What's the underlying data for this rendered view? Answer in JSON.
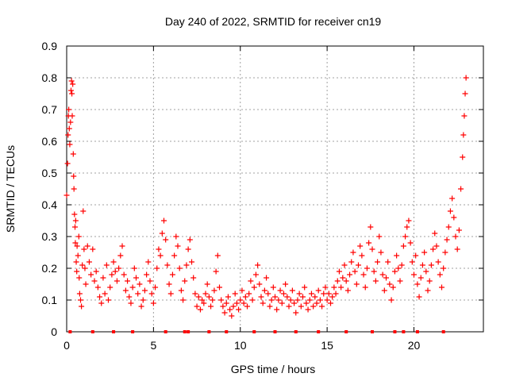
{
  "chart_data": {
    "type": "scatter",
    "title": "Day 240 of 2022, SRMTID for receiver cn19",
    "xlabel": "GPS time / hours",
    "ylabel": "SRMTID / TECUs",
    "xlim": [
      0,
      24
    ],
    "ylim": [
      0,
      0.9
    ],
    "xticks": [
      0,
      5,
      10,
      15,
      20
    ],
    "xtick_labels": [
      "0",
      "5",
      "10",
      "15",
      "20"
    ],
    "yticks": [
      0,
      0.1,
      0.2,
      0.3,
      0.4,
      0.5,
      0.6,
      0.7,
      0.8,
      0.9
    ],
    "ytick_labels": [
      "0",
      "0.1",
      "0.2",
      "0.3",
      "0.4",
      "0.5",
      "0.6",
      "0.7",
      "0.8",
      "0.9"
    ],
    "grid": true,
    "marker": "+",
    "color": "#ff0000",
    "series": [
      {
        "name": "SRMTID",
        "points": [
          [
            0.0,
            0.43
          ],
          [
            0.05,
            0.53
          ],
          [
            0.08,
            0.62
          ],
          [
            0.1,
            0.68
          ],
          [
            0.12,
            0.7
          ],
          [
            0.15,
            0.64
          ],
          [
            0.18,
            0.59
          ],
          [
            0.22,
            0.66
          ],
          [
            0.25,
            0.76
          ],
          [
            0.28,
            0.79
          ],
          [
            0.3,
            0.75
          ],
          [
            0.32,
            0.68
          ],
          [
            0.35,
            0.78
          ],
          [
            0.38,
            0.56
          ],
          [
            0.4,
            0.49
          ],
          [
            0.42,
            0.45
          ],
          [
            0.45,
            0.37
          ],
          [
            0.48,
            0.33
          ],
          [
            0.5,
            0.28
          ],
          [
            0.52,
            0.35
          ],
          [
            0.55,
            0.22
          ],
          [
            0.58,
            0.19
          ],
          [
            0.6,
            0.27
          ],
          [
            0.65,
            0.24
          ],
          [
            0.7,
            0.3
          ],
          [
            0.72,
            0.17
          ],
          [
            0.75,
            0.12
          ],
          [
            0.8,
            0.1
          ],
          [
            0.85,
            0.08
          ],
          [
            0.9,
            0.21
          ],
          [
            0.95,
            0.38
          ],
          [
            1.0,
            0.26
          ],
          [
            1.05,
            0.2
          ],
          [
            1.1,
            0.15
          ],
          [
            1.2,
            0.27
          ],
          [
            1.3,
            0.22
          ],
          [
            1.4,
            0.18
          ],
          [
            1.5,
            0.26
          ],
          [
            1.6,
            0.16
          ],
          [
            1.7,
            0.19
          ],
          [
            1.8,
            0.14
          ],
          [
            1.9,
            0.11
          ],
          [
            2.0,
            0.09
          ],
          [
            2.1,
            0.17
          ],
          [
            2.2,
            0.12
          ],
          [
            2.3,
            0.21
          ],
          [
            2.4,
            0.1
          ],
          [
            2.5,
            0.14
          ],
          [
            2.6,
            0.18
          ],
          [
            2.7,
            0.22
          ],
          [
            2.8,
            0.19
          ],
          [
            2.9,
            0.16
          ],
          [
            3.0,
            0.2
          ],
          [
            3.1,
            0.24
          ],
          [
            3.2,
            0.27
          ],
          [
            3.3,
            0.18
          ],
          [
            3.4,
            0.13
          ],
          [
            3.5,
            0.16
          ],
          [
            3.6,
            0.11
          ],
          [
            3.7,
            0.09
          ],
          [
            3.8,
            0.14
          ],
          [
            3.9,
            0.2
          ],
          [
            4.0,
            0.17
          ],
          [
            4.1,
            0.12
          ],
          [
            4.2,
            0.15
          ],
          [
            4.3,
            0.08
          ],
          [
            4.4,
            0.1
          ],
          [
            4.5,
            0.13
          ],
          [
            4.6,
            0.18
          ],
          [
            4.7,
            0.22
          ],
          [
            4.8,
            0.16
          ],
          [
            4.9,
            0.12
          ],
          [
            5.0,
            0.09
          ],
          [
            5.1,
            0.14
          ],
          [
            5.2,
            0.2
          ],
          [
            5.3,
            0.26
          ],
          [
            5.4,
            0.24
          ],
          [
            5.5,
            0.31
          ],
          [
            5.6,
            0.35
          ],
          [
            5.7,
            0.29
          ],
          [
            5.8,
            0.21
          ],
          [
            5.9,
            0.15
          ],
          [
            6.0,
            0.12
          ],
          [
            6.1,
            0.18
          ],
          [
            6.2,
            0.24
          ],
          [
            6.3,
            0.3
          ],
          [
            6.4,
            0.27
          ],
          [
            6.5,
            0.2
          ],
          [
            6.6,
            0.13
          ],
          [
            6.7,
            0.1
          ],
          [
            6.8,
            0.16
          ],
          [
            6.9,
            0.21
          ],
          [
            7.0,
            0.26
          ],
          [
            7.1,
            0.29
          ],
          [
            7.2,
            0.22
          ],
          [
            7.3,
            0.17
          ],
          [
            7.4,
            0.12
          ],
          [
            7.5,
            0.08
          ],
          [
            7.6,
            0.11
          ],
          [
            7.7,
            0.07
          ],
          [
            7.8,
            0.1
          ],
          [
            7.9,
            0.09
          ],
          [
            8.0,
            0.12
          ],
          [
            8.1,
            0.15
          ],
          [
            8.2,
            0.11
          ],
          [
            8.3,
            0.08
          ],
          [
            8.4,
            0.1
          ],
          [
            8.5,
            0.13
          ],
          [
            8.6,
            0.19
          ],
          [
            8.7,
            0.24
          ],
          [
            8.8,
            0.14
          ],
          [
            8.9,
            0.1
          ],
          [
            9.0,
            0.08
          ],
          [
            9.1,
            0.06
          ],
          [
            9.2,
            0.09
          ],
          [
            9.3,
            0.11
          ],
          [
            9.4,
            0.07
          ],
          [
            9.5,
            0.05
          ],
          [
            9.6,
            0.08
          ],
          [
            9.7,
            0.12
          ],
          [
            9.8,
            0.09
          ],
          [
            9.9,
            0.07
          ],
          [
            10.0,
            0.1
          ],
          [
            10.1,
            0.13
          ],
          [
            10.2,
            0.09
          ],
          [
            10.3,
            0.11
          ],
          [
            10.4,
            0.08
          ],
          [
            10.5,
            0.12
          ],
          [
            10.6,
            0.16
          ],
          [
            10.7,
            0.1
          ],
          [
            10.8,
            0.14
          ],
          [
            10.9,
            0.18
          ],
          [
            11.0,
            0.21
          ],
          [
            11.1,
            0.15
          ],
          [
            11.2,
            0.11
          ],
          [
            11.3,
            0.09
          ],
          [
            11.4,
            0.13
          ],
          [
            11.5,
            0.17
          ],
          [
            11.6,
            0.12
          ],
          [
            11.7,
            0.08
          ],
          [
            11.8,
            0.1
          ],
          [
            11.9,
            0.14
          ],
          [
            12.0,
            0.11
          ],
          [
            12.1,
            0.07
          ],
          [
            12.2,
            0.1
          ],
          [
            12.3,
            0.13
          ],
          [
            12.4,
            0.09
          ],
          [
            12.5,
            0.12
          ],
          [
            12.6,
            0.15
          ],
          [
            12.7,
            0.11
          ],
          [
            12.8,
            0.08
          ],
          [
            12.9,
            0.1
          ],
          [
            13.0,
            0.13
          ],
          [
            13.1,
            0.09
          ],
          [
            13.2,
            0.06
          ],
          [
            13.3,
            0.1
          ],
          [
            13.4,
            0.12
          ],
          [
            13.5,
            0.08
          ],
          [
            13.6,
            0.11
          ],
          [
            13.7,
            0.14
          ],
          [
            13.8,
            0.09
          ],
          [
            13.9,
            0.07
          ],
          [
            14.0,
            0.1
          ],
          [
            14.1,
            0.12
          ],
          [
            14.2,
            0.08
          ],
          [
            14.3,
            0.11
          ],
          [
            14.4,
            0.09
          ],
          [
            14.5,
            0.13
          ],
          [
            14.6,
            0.1
          ],
          [
            14.7,
            0.08
          ],
          [
            14.8,
            0.12
          ],
          [
            14.9,
            0.14
          ],
          [
            15.0,
            0.1
          ],
          [
            15.1,
            0.12
          ],
          [
            15.2,
            0.09
          ],
          [
            15.3,
            0.11
          ],
          [
            15.4,
            0.14
          ],
          [
            15.5,
            0.12
          ],
          [
            15.6,
            0.16
          ],
          [
            15.7,
            0.19
          ],
          [
            15.8,
            0.14
          ],
          [
            15.9,
            0.17
          ],
          [
            16.0,
            0.21
          ],
          [
            16.1,
            0.16
          ],
          [
            16.2,
            0.13
          ],
          [
            16.3,
            0.18
          ],
          [
            16.4,
            0.22
          ],
          [
            16.5,
            0.25
          ],
          [
            16.6,
            0.19
          ],
          [
            16.7,
            0.15
          ],
          [
            16.8,
            0.21
          ],
          [
            16.9,
            0.27
          ],
          [
            17.0,
            0.24
          ],
          [
            17.1,
            0.18
          ],
          [
            17.2,
            0.14
          ],
          [
            17.3,
            0.2
          ],
          [
            17.4,
            0.28
          ],
          [
            17.5,
            0.33
          ],
          [
            17.6,
            0.26
          ],
          [
            17.7,
            0.19
          ],
          [
            17.8,
            0.16
          ],
          [
            17.9,
            0.22
          ],
          [
            18.0,
            0.3
          ],
          [
            18.1,
            0.25
          ],
          [
            18.2,
            0.18
          ],
          [
            18.3,
            0.13
          ],
          [
            18.4,
            0.17
          ],
          [
            18.5,
            0.22
          ],
          [
            18.6,
            0.15
          ],
          [
            18.7,
            0.1
          ],
          [
            18.8,
            0.14
          ],
          [
            18.9,
            0.19
          ],
          [
            19.0,
            0.24
          ],
          [
            19.1,
            0.2
          ],
          [
            19.2,
            0.16
          ],
          [
            19.3,
            0.21
          ],
          [
            19.4,
            0.27
          ],
          [
            19.5,
            0.3
          ],
          [
            19.6,
            0.33
          ],
          [
            19.7,
            0.35
          ],
          [
            19.8,
            0.28
          ],
          [
            19.9,
            0.22
          ],
          [
            20.0,
            0.18
          ],
          [
            20.1,
            0.24
          ],
          [
            20.2,
            0.15
          ],
          [
            20.3,
            0.11
          ],
          [
            20.4,
            0.17
          ],
          [
            20.5,
            0.21
          ],
          [
            20.6,
            0.25
          ],
          [
            20.7,
            0.19
          ],
          [
            20.8,
            0.13
          ],
          [
            20.9,
            0.16
          ],
          [
            21.0,
            0.21
          ],
          [
            21.1,
            0.26
          ],
          [
            21.2,
            0.31
          ],
          [
            21.3,
            0.27
          ],
          [
            21.4,
            0.22
          ],
          [
            21.5,
            0.18
          ],
          [
            21.6,
            0.14
          ],
          [
            21.7,
            0.2
          ],
          [
            21.8,
            0.25
          ],
          [
            21.9,
            0.29
          ],
          [
            22.0,
            0.33
          ],
          [
            22.1,
            0.38
          ],
          [
            22.2,
            0.42
          ],
          [
            22.3,
            0.36
          ],
          [
            22.4,
            0.3
          ],
          [
            22.5,
            0.26
          ],
          [
            22.6,
            0.32
          ],
          [
            22.7,
            0.45
          ],
          [
            22.8,
            0.55
          ],
          [
            22.85,
            0.62
          ],
          [
            22.9,
            0.68
          ],
          [
            22.95,
            0.75
          ],
          [
            23.0,
            0.8
          ]
        ],
        "zero_markers_x": [
          0.2,
          1.5,
          2.7,
          3.8,
          5.7,
          6.8,
          7.0,
          8.2,
          9.2,
          10.8,
          12.0,
          13.2,
          14.5,
          16.1,
          17.6,
          18.9,
          19.4,
          20.2,
          21.7
        ]
      }
    ]
  }
}
